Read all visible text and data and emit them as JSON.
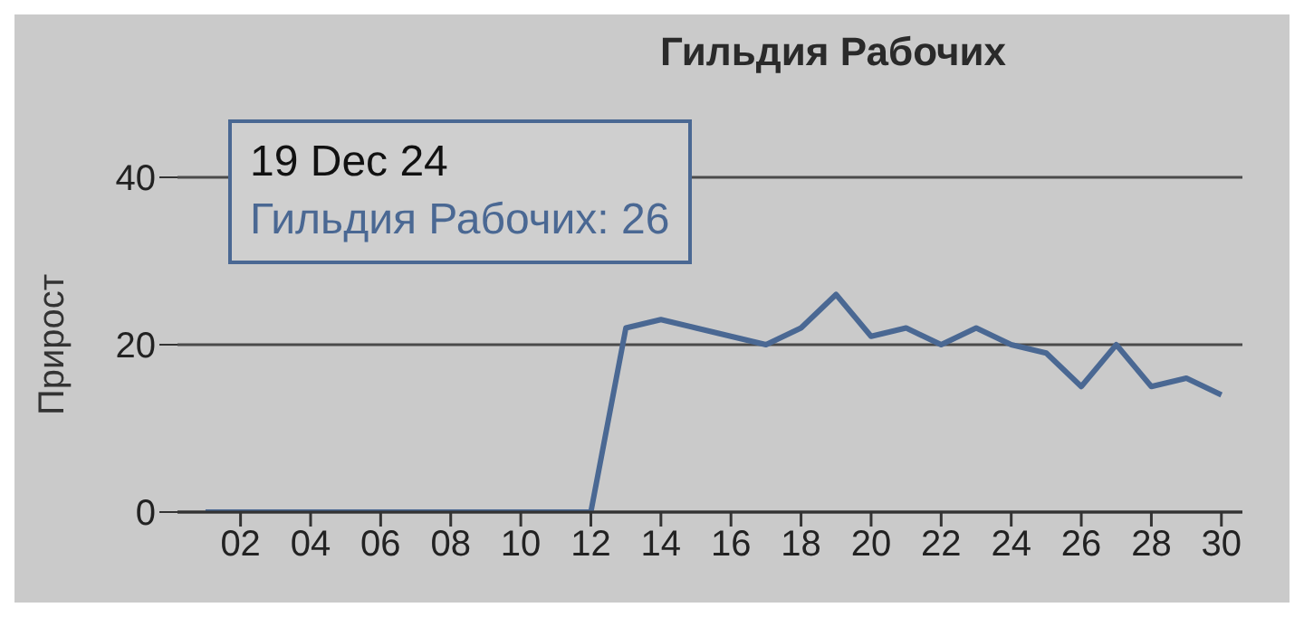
{
  "chart_data": {
    "type": "line",
    "title": "Гильдия Рабочих",
    "ylabel": "Прирост",
    "x": [
      1,
      2,
      3,
      4,
      5,
      6,
      7,
      8,
      9,
      10,
      11,
      12,
      13,
      14,
      15,
      16,
      17,
      18,
      19,
      20,
      21,
      22,
      23,
      24,
      25,
      26,
      27,
      28,
      29,
      30
    ],
    "series": [
      {
        "color": "#4a6893",
        "values": [
          0,
          0,
          0,
          0,
          0,
          0,
          0,
          0,
          0,
          0,
          0,
          0,
          22,
          23,
          22,
          21,
          20,
          22,
          26,
          21,
          22,
          20,
          22,
          20,
          19,
          15,
          20,
          15,
          16,
          14
        ]
      }
    ],
    "xlim": [
      0.2,
      30.6
    ],
    "xticks": [
      {
        "value": 2,
        "label": "02"
      },
      {
        "value": 4,
        "label": "04"
      },
      {
        "value": 6,
        "label": "06"
      },
      {
        "value": 8,
        "label": "08"
      },
      {
        "value": 10,
        "label": "10"
      },
      {
        "value": 12,
        "label": "12"
      },
      {
        "value": 14,
        "label": "14"
      },
      {
        "value": 16,
        "label": "16"
      },
      {
        "value": 18,
        "label": "18"
      },
      {
        "value": 20,
        "label": "20"
      },
      {
        "value": 22,
        "label": "22"
      },
      {
        "value": 24,
        "label": "24"
      },
      {
        "value": 26,
        "label": "26"
      },
      {
        "value": 28,
        "label": "28"
      },
      {
        "value": 30,
        "label": "30"
      }
    ],
    "ylim": [
      0,
      40
    ],
    "yticks": [
      0,
      20,
      40
    ],
    "grid": "y",
    "legend": false,
    "marker": "none",
    "line_style": "solid",
    "annotations": [
      "19 Dec 24",
      "Гильдия Рабочих: 26"
    ]
  }
}
